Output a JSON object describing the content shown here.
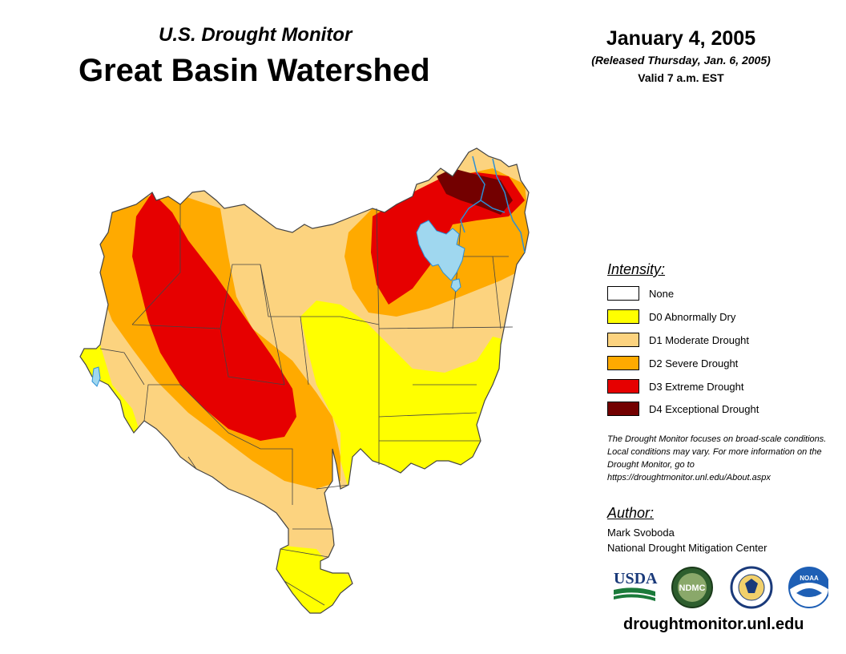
{
  "header": {
    "subtitle": "U.S. Drought Monitor",
    "title": "Great Basin Watershed",
    "date": "January 4, 2005",
    "released": "(Released Thursday, Jan. 6, 2005)",
    "valid": "Valid 7 a.m. EST"
  },
  "legend": {
    "title": "Intensity:",
    "items": [
      {
        "label": "None",
        "color": "#ffffff"
      },
      {
        "label": "D0 Abnormally Dry",
        "color": "#ffff00"
      },
      {
        "label": "D1 Moderate Drought",
        "color": "#fcd37f"
      },
      {
        "label": "D2 Severe Drought",
        "color": "#ffaa00"
      },
      {
        "label": "D3 Extreme Drought",
        "color": "#e60000"
      },
      {
        "label": "D4 Exceptional Drought",
        "color": "#730000"
      }
    ]
  },
  "note": "The Drought Monitor focuses on broad-scale conditions. Local conditions may vary. For more information on the Drought Monitor, go to https://droughtmonitor.unl.edu/About.aspx",
  "author": {
    "title": "Author:",
    "name": "Mark Svoboda",
    "org": "National Drought Mitigation Center"
  },
  "logos": {
    "usda": "USDA",
    "ndmc": "NDMC",
    "noaa": "NOAA"
  },
  "colors": {
    "lake": "#9fd7ef",
    "river": "#2b8fd6"
  },
  "url": "droughtmonitor.unl.edu"
}
